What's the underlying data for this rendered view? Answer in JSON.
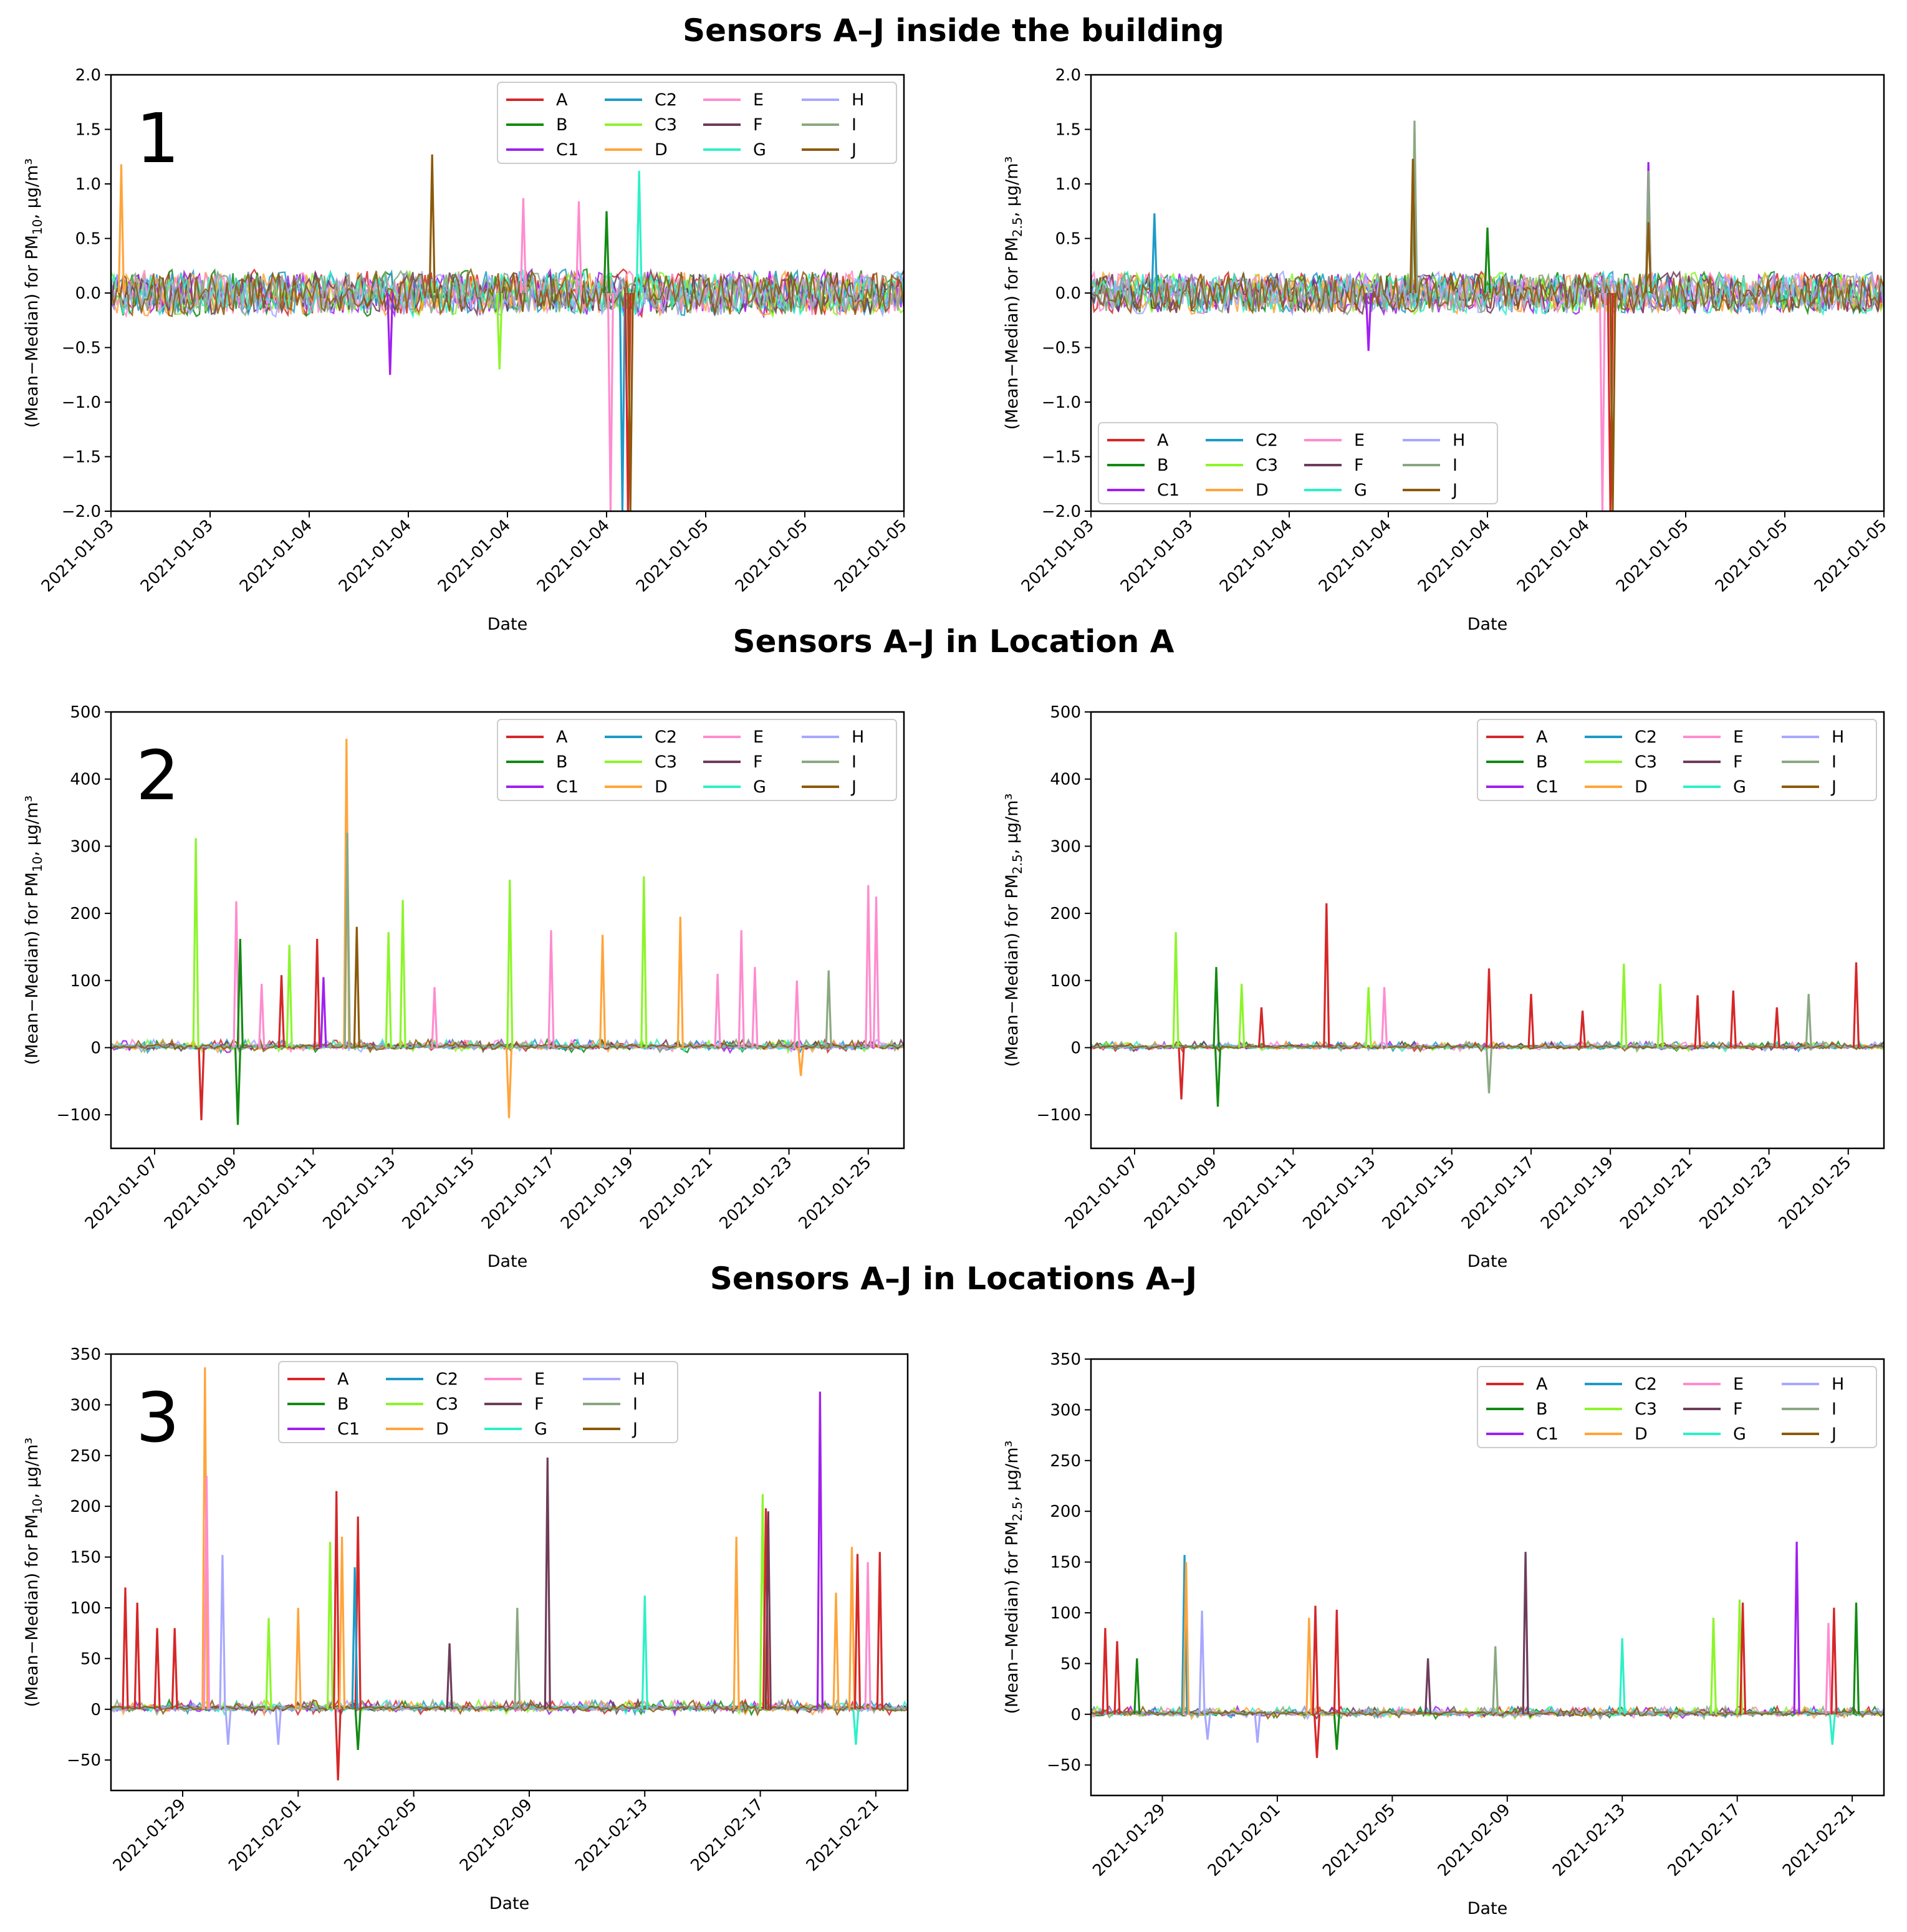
{
  "section_titles": [
    "Sensors A–J inside the building",
    "Sensors A–J in Location A",
    "Sensors A–J in Locations A–J"
  ],
  "colors": {
    "A": "#d62728",
    "B": "#138a13",
    "C1": "#a020f0",
    "C2": "#1e9bc8",
    "C3": "#8cf52a",
    "D": "#ffa53c",
    "E": "#ff8ccf",
    "F": "#6e3c5a",
    "G": "#2ef0c8",
    "H": "#a8a8ff",
    "I": "#8aa882",
    "J": "#8c5a0a"
  },
  "chart_data": [
    {
      "type": "line",
      "panel_label": "1",
      "title": "Sensors A–J inside the building",
      "xlabel": "Date",
      "ylabel": "(Mean−Median) for PM10, µg/m³",
      "ylim": [
        -2.0,
        2.0
      ],
      "yticks": [
        -2.0,
        -1.5,
        -1.0,
        -0.5,
        0.0,
        0.5,
        1.0,
        1.5,
        2.0
      ],
      "ytick_decimals": 1,
      "xticks": [
        "2021-01-03",
        "2021-01-03",
        "2021-01-04",
        "2021-01-04",
        "2021-01-04",
        "2021-01-04",
        "2021-01-05",
        "2021-01-05",
        "2021-01-05"
      ],
      "legend": {
        "position": "upper right",
        "entries": [
          "A",
          "C2",
          "E",
          "H",
          "B",
          "C3",
          "F",
          "I",
          "C1",
          "D",
          "G",
          "J"
        ]
      },
      "series_names": [
        "A",
        "B",
        "C1",
        "C2",
        "C3",
        "D",
        "E",
        "F",
        "G",
        "H",
        "I",
        "J"
      ],
      "noise_amplitude": 0.22,
      "spikes": [
        {
          "x": 0.013,
          "y": 1.18,
          "series": "D"
        },
        {
          "x": 0.405,
          "y": 1.27,
          "series": "J"
        },
        {
          "x": 0.52,
          "y": 0.87,
          "series": "E"
        },
        {
          "x": 0.59,
          "y": 0.84,
          "series": "E"
        },
        {
          "x": 0.625,
          "y": 0.75,
          "series": "B"
        },
        {
          "x": 0.666,
          "y": 1.12,
          "series": "G"
        },
        {
          "x": 0.352,
          "y": -0.75,
          "series": "C1"
        },
        {
          "x": 0.49,
          "y": -0.7,
          "series": "C3"
        },
        {
          "x": 0.63,
          "y": -2.0,
          "series": "E"
        },
        {
          "x": 0.645,
          "y": -2.0,
          "series": "C2"
        },
        {
          "x": 0.652,
          "y": -2.0,
          "series": "A"
        },
        {
          "x": 0.655,
          "y": -2.0,
          "series": "J"
        }
      ]
    },
    {
      "type": "line",
      "xlabel": "Date",
      "ylabel": "(Mean−Median) for PM2.5, µg/m³",
      "ylim": [
        -2.0,
        2.0
      ],
      "yticks": [
        -2.0,
        -1.5,
        -1.0,
        -0.5,
        0.0,
        0.5,
        1.0,
        1.5,
        2.0
      ],
      "ytick_decimals": 1,
      "xticks": [
        "2021-01-03",
        "2021-01-03",
        "2021-01-04",
        "2021-01-04",
        "2021-01-04",
        "2021-01-04",
        "2021-01-05",
        "2021-01-05",
        "2021-01-05"
      ],
      "legend": {
        "position": "lower left",
        "entries": [
          "A",
          "C2",
          "E",
          "H",
          "B",
          "C3",
          "F",
          "I",
          "C1",
          "D",
          "G",
          "J"
        ]
      },
      "series_names": [
        "A",
        "B",
        "C1",
        "C2",
        "C3",
        "D",
        "E",
        "F",
        "G",
        "H",
        "I",
        "J"
      ],
      "noise_amplitude": 0.2,
      "spikes": [
        {
          "x": 0.08,
          "y": 0.73,
          "series": "C2"
        },
        {
          "x": 0.408,
          "y": 1.58,
          "series": "I"
        },
        {
          "x": 0.406,
          "y": 1.23,
          "series": "J"
        },
        {
          "x": 0.703,
          "y": 1.2,
          "series": "C1"
        },
        {
          "x": 0.703,
          "y": 1.12,
          "series": "I"
        },
        {
          "x": 0.703,
          "y": 0.65,
          "series": "J"
        },
        {
          "x": 0.5,
          "y": 0.6,
          "series": "B"
        },
        {
          "x": 0.35,
          "y": -0.53,
          "series": "C1"
        },
        {
          "x": 0.645,
          "y": -2.0,
          "series": "E"
        },
        {
          "x": 0.655,
          "y": -2.0,
          "series": "A"
        },
        {
          "x": 0.658,
          "y": -2.0,
          "series": "J"
        }
      ]
    },
    {
      "type": "line",
      "panel_label": "2",
      "title": "Sensors A–J in Location A",
      "xlabel": "Date",
      "ylabel": "(Mean−Median) for PM10, µg/m³",
      "ylim": [
        -150,
        500
      ],
      "yticks": [
        -100,
        0,
        100,
        200,
        300,
        400,
        500
      ],
      "ytick_decimals": 0,
      "xticks": [
        "2021-01-07",
        "2021-01-09",
        "2021-01-11",
        "2021-01-13",
        "2021-01-15",
        "2021-01-17",
        "2021-01-19",
        "2021-01-21",
        "2021-01-23",
        "2021-01-25"
      ],
      "legend": {
        "position": "upper right",
        "entries": [
          "A",
          "C2",
          "E",
          "H",
          "B",
          "C3",
          "F",
          "I",
          "C1",
          "D",
          "G",
          "J"
        ]
      },
      "series_names": [
        "A",
        "B",
        "C1",
        "C2",
        "C3",
        "D",
        "E",
        "F",
        "G",
        "H",
        "I",
        "J"
      ],
      "noise_amplitude": 4,
      "spikes": [
        {
          "x": 0.107,
          "y": 312,
          "series": "C3"
        },
        {
          "x": 0.114,
          "y": -108,
          "series": "A"
        },
        {
          "x": 0.158,
          "y": 218,
          "series": "E"
        },
        {
          "x": 0.16,
          "y": -115,
          "series": "B"
        },
        {
          "x": 0.163,
          "y": 162,
          "series": "B"
        },
        {
          "x": 0.19,
          "y": 95,
          "series": "E"
        },
        {
          "x": 0.215,
          "y": 108,
          "series": "A"
        },
        {
          "x": 0.225,
          "y": 153,
          "series": "C3"
        },
        {
          "x": 0.26,
          "y": 162,
          "series": "A"
        },
        {
          "x": 0.268,
          "y": 105,
          "series": "C1"
        },
        {
          "x": 0.297,
          "y": 460,
          "series": "D"
        },
        {
          "x": 0.298,
          "y": 320,
          "series": "I"
        },
        {
          "x": 0.31,
          "y": 180,
          "series": "J"
        },
        {
          "x": 0.35,
          "y": 172,
          "series": "C3"
        },
        {
          "x": 0.368,
          "y": 220,
          "series": "C3"
        },
        {
          "x": 0.408,
          "y": 90,
          "series": "E"
        },
        {
          "x": 0.503,
          "y": 250,
          "series": "C3"
        },
        {
          "x": 0.502,
          "y": -105,
          "series": "D"
        },
        {
          "x": 0.555,
          "y": 175,
          "series": "E"
        },
        {
          "x": 0.62,
          "y": 168,
          "series": "D"
        },
        {
          "x": 0.672,
          "y": 255,
          "series": "C3"
        },
        {
          "x": 0.718,
          "y": 195,
          "series": "D"
        },
        {
          "x": 0.765,
          "y": 110,
          "series": "E"
        },
        {
          "x": 0.795,
          "y": 175,
          "series": "E"
        },
        {
          "x": 0.812,
          "y": 120,
          "series": "E"
        },
        {
          "x": 0.865,
          "y": 100,
          "series": "E"
        },
        {
          "x": 0.905,
          "y": 115,
          "series": "I"
        },
        {
          "x": 0.955,
          "y": 242,
          "series": "E"
        },
        {
          "x": 0.965,
          "y": 225,
          "series": "E"
        },
        {
          "x": 0.87,
          "y": -42,
          "series": "D"
        }
      ]
    },
    {
      "type": "line",
      "xlabel": "Date",
      "ylabel": "(Mean−Median) for PM2.5, µg/m³",
      "ylim": [
        -150,
        500
      ],
      "yticks": [
        -100,
        0,
        100,
        200,
        300,
        400,
        500
      ],
      "ytick_decimals": 0,
      "xticks": [
        "2021-01-07",
        "2021-01-09",
        "2021-01-11",
        "2021-01-13",
        "2021-01-15",
        "2021-01-17",
        "2021-01-19",
        "2021-01-21",
        "2021-01-23",
        "2021-01-25"
      ],
      "legend": {
        "position": "upper right",
        "entries": [
          "A",
          "C2",
          "E",
          "H",
          "B",
          "C3",
          "F",
          "I",
          "C1",
          "D",
          "G",
          "J"
        ]
      },
      "series_names": [
        "A",
        "B",
        "C1",
        "C2",
        "C3",
        "D",
        "E",
        "F",
        "G",
        "H",
        "I",
        "J"
      ],
      "noise_amplitude": 3,
      "spikes": [
        {
          "x": 0.107,
          "y": 172,
          "series": "C3"
        },
        {
          "x": 0.114,
          "y": -77,
          "series": "A"
        },
        {
          "x": 0.158,
          "y": 120,
          "series": "B"
        },
        {
          "x": 0.16,
          "y": -88,
          "series": "B"
        },
        {
          "x": 0.19,
          "y": 95,
          "series": "C3"
        },
        {
          "x": 0.215,
          "y": 60,
          "series": "A"
        },
        {
          "x": 0.297,
          "y": 215,
          "series": "A"
        },
        {
          "x": 0.35,
          "y": 90,
          "series": "C3"
        },
        {
          "x": 0.37,
          "y": 90,
          "series": "E"
        },
        {
          "x": 0.502,
          "y": 118,
          "series": "A"
        },
        {
          "x": 0.502,
          "y": -68,
          "series": "I"
        },
        {
          "x": 0.555,
          "y": 80,
          "series": "A"
        },
        {
          "x": 0.62,
          "y": 55,
          "series": "A"
        },
        {
          "x": 0.672,
          "y": 125,
          "series": "C3"
        },
        {
          "x": 0.718,
          "y": 95,
          "series": "C3"
        },
        {
          "x": 0.765,
          "y": 78,
          "series": "A"
        },
        {
          "x": 0.81,
          "y": 85,
          "series": "A"
        },
        {
          "x": 0.865,
          "y": 60,
          "series": "A"
        },
        {
          "x": 0.905,
          "y": 80,
          "series": "I"
        },
        {
          "x": 0.965,
          "y": 127,
          "series": "A"
        }
      ]
    },
    {
      "type": "line",
      "panel_label": "3",
      "title": "Sensors A–J in Locations A–J",
      "xlabel": "Date",
      "ylabel": "(Mean−Median) for PM10, µg/m³",
      "ylim": [
        -80,
        350
      ],
      "yticks": [
        -50,
        0,
        50,
        100,
        150,
        200,
        250,
        300,
        350
      ],
      "ytick_decimals": 0,
      "xticks": [
        "2021-01-29",
        "2021-02-01",
        "2021-02-05",
        "2021-02-09",
        "2021-02-13",
        "2021-02-17",
        "2021-02-21"
      ],
      "legend": {
        "position": "upper center",
        "entries": [
          "A",
          "C2",
          "E",
          "H",
          "B",
          "C3",
          "F",
          "I",
          "C1",
          "D",
          "G",
          "J"
        ]
      },
      "series_names": [
        "A",
        "B",
        "C1",
        "C2",
        "C3",
        "D",
        "E",
        "F",
        "G",
        "H",
        "I",
        "J"
      ],
      "noise_amplitude": 3,
      "spikes": [
        {
          "x": 0.018,
          "y": 120,
          "series": "A"
        },
        {
          "x": 0.033,
          "y": 105,
          "series": "A"
        },
        {
          "x": 0.058,
          "y": 80,
          "series": "A"
        },
        {
          "x": 0.08,
          "y": 80,
          "series": "A"
        },
        {
          "x": 0.118,
          "y": 337,
          "series": "D"
        },
        {
          "x": 0.12,
          "y": 230,
          "series": "E"
        },
        {
          "x": 0.14,
          "y": 152,
          "series": "H"
        },
        {
          "x": 0.147,
          "y": -35,
          "series": "H"
        },
        {
          "x": 0.198,
          "y": 90,
          "series": "C3"
        },
        {
          "x": 0.21,
          "y": -35,
          "series": "H"
        },
        {
          "x": 0.235,
          "y": 100,
          "series": "D"
        },
        {
          "x": 0.275,
          "y": 165,
          "series": "C3"
        },
        {
          "x": 0.283,
          "y": 215,
          "series": "A"
        },
        {
          "x": 0.285,
          "y": -70,
          "series": "A"
        },
        {
          "x": 0.29,
          "y": 170,
          "series": "D"
        },
        {
          "x": 0.31,
          "y": 190,
          "series": "A"
        },
        {
          "x": 0.306,
          "y": 140,
          "series": "C2"
        },
        {
          "x": 0.31,
          "y": -40,
          "series": "B"
        },
        {
          "x": 0.425,
          "y": 65,
          "series": "F"
        },
        {
          "x": 0.51,
          "y": 100,
          "series": "I"
        },
        {
          "x": 0.548,
          "y": 248,
          "series": "F"
        },
        {
          "x": 0.67,
          "y": 112,
          "series": "G"
        },
        {
          "x": 0.785,
          "y": 170,
          "series": "D"
        },
        {
          "x": 0.818,
          "y": 212,
          "series": "C3"
        },
        {
          "x": 0.822,
          "y": 198,
          "series": "A"
        },
        {
          "x": 0.825,
          "y": 195,
          "series": "F"
        },
        {
          "x": 0.89,
          "y": 313,
          "series": "C1"
        },
        {
          "x": 0.91,
          "y": 115,
          "series": "D"
        },
        {
          "x": 0.93,
          "y": 160,
          "series": "D"
        },
        {
          "x": 0.937,
          "y": 153,
          "series": "A"
        },
        {
          "x": 0.95,
          "y": 145,
          "series": "E"
        },
        {
          "x": 0.965,
          "y": 155,
          "series": "A"
        },
        {
          "x": 0.935,
          "y": -35,
          "series": "G"
        }
      ]
    },
    {
      "type": "line",
      "xlabel": "Date",
      "ylabel": "(Mean−Median) for PM2.5, µg/m³",
      "ylim": [
        -80,
        350
      ],
      "yticks": [
        -50,
        0,
        50,
        100,
        150,
        200,
        250,
        300,
        350
      ],
      "ytick_decimals": 0,
      "xticks": [
        "2021-01-29",
        "2021-02-01",
        "2021-02-05",
        "2021-02-09",
        "2021-02-13",
        "2021-02-17",
        "2021-02-21"
      ],
      "legend": {
        "position": "upper right",
        "entries": [
          "A",
          "C2",
          "E",
          "H",
          "B",
          "C3",
          "F",
          "I",
          "C1",
          "D",
          "G",
          "J"
        ]
      },
      "series_names": [
        "A",
        "B",
        "C1",
        "C2",
        "C3",
        "D",
        "E",
        "F",
        "G",
        "H",
        "I",
        "J"
      ],
      "noise_amplitude": 2.5,
      "spikes": [
        {
          "x": 0.018,
          "y": 85,
          "series": "A"
        },
        {
          "x": 0.033,
          "y": 72,
          "series": "A"
        },
        {
          "x": 0.058,
          "y": 55,
          "series": "B"
        },
        {
          "x": 0.118,
          "y": 157,
          "series": "C2"
        },
        {
          "x": 0.12,
          "y": 150,
          "series": "D"
        },
        {
          "x": 0.14,
          "y": 102,
          "series": "H"
        },
        {
          "x": 0.147,
          "y": -25,
          "series": "H"
        },
        {
          "x": 0.21,
          "y": -28,
          "series": "H"
        },
        {
          "x": 0.275,
          "y": 95,
          "series": "D"
        },
        {
          "x": 0.283,
          "y": 107,
          "series": "A"
        },
        {
          "x": 0.285,
          "y": -43,
          "series": "A"
        },
        {
          "x": 0.31,
          "y": 103,
          "series": "A"
        },
        {
          "x": 0.31,
          "y": -35,
          "series": "B"
        },
        {
          "x": 0.425,
          "y": 55,
          "series": "F"
        },
        {
          "x": 0.51,
          "y": 67,
          "series": "I"
        },
        {
          "x": 0.548,
          "y": 160,
          "series": "F"
        },
        {
          "x": 0.67,
          "y": 75,
          "series": "G"
        },
        {
          "x": 0.785,
          "y": 95,
          "series": "C3"
        },
        {
          "x": 0.818,
          "y": 113,
          "series": "C3"
        },
        {
          "x": 0.822,
          "y": 110,
          "series": "A"
        },
        {
          "x": 0.89,
          "y": 170,
          "series": "C1"
        },
        {
          "x": 0.93,
          "y": 90,
          "series": "E"
        },
        {
          "x": 0.937,
          "y": 105,
          "series": "A"
        },
        {
          "x": 0.965,
          "y": 110,
          "series": "B"
        },
        {
          "x": 0.935,
          "y": -30,
          "series": "G"
        }
      ]
    }
  ]
}
